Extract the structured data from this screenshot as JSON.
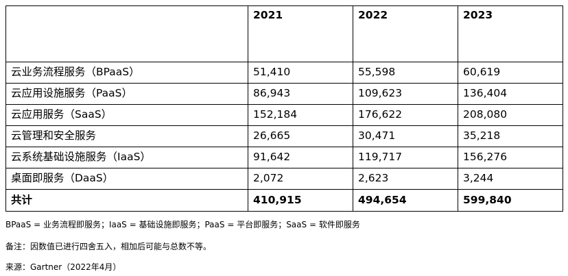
{
  "table": {
    "headers": [
      "",
      "2021",
      "2022",
      "2023"
    ],
    "rows": [
      [
        "云业务流程服务（BPaaS）",
        "51,410",
        "55,598",
        "60,619"
      ],
      [
        "云应用设施服务（PaaS）",
        "86,943",
        "109,623",
        "136,404"
      ],
      [
        "云应用服务（SaaS）",
        "152,184",
        "176,622",
        "208,080"
      ],
      [
        "云管理和安全服务",
        "26,665",
        "30,471",
        "35,218"
      ],
      [
        "云系统基础设施服务（IaaS）",
        "91,642",
        "119,717",
        "156,276"
      ],
      [
        "桌面即服务（DaaS）",
        "2,072",
        "2,623",
        "3,244"
      ]
    ],
    "total": [
      "共计",
      "410,915",
      "494,654",
      "599,840"
    ]
  },
  "notes": {
    "abbreviations": "BPaaS = 业务流程即服务；IaaS = 基础设施即服务；PaaS = 平台即服务；SaaS = 软件即服务",
    "remark": "备注：因数值已进行四舍五入，相加后可能与总数不等。",
    "source": "来源：Gartner（2022年4月）"
  }
}
